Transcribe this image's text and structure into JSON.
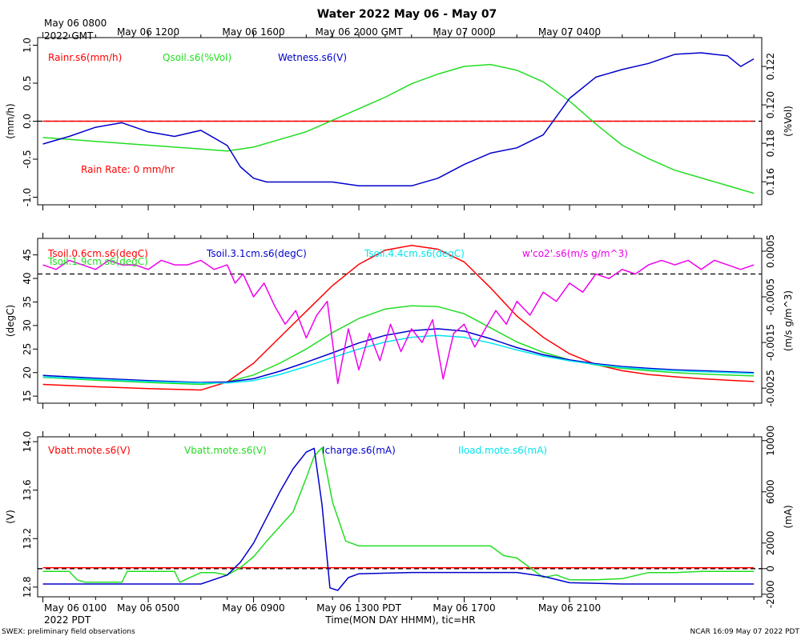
{
  "header": {
    "title": "Water 2022 May 06 - May 07",
    "gmt_start_line1": "May 06 0800",
    "gmt_start_line2": "2022 GMT",
    "gmt_ticks": [
      "May 06 1200",
      "May 06 1600",
      "May 06 2000 GMT",
      "May 07 0000",
      "May 07 0400"
    ]
  },
  "footer": {
    "pdt_start_line1": "May 06 0100",
    "pdt_start_line2": "2022 PDT",
    "pdt_ticks": [
      "May 06 0500",
      "May 06 0900",
      "May 06 1300 PDT",
      "May 06 1700",
      "May 06 2100"
    ],
    "xlabel": "Time(MON DAY HHMM), tic=HR",
    "left_note": "SWEX: preliminary field observations",
    "right_note": "NCAR 16:09 May 07 2022 PDT"
  },
  "colors": {
    "red": "#ff0000",
    "green": "#22dd22",
    "blue": "#0000cc",
    "cyan": "#00e5ee",
    "magenta": "#ee00ee",
    "black": "#000000"
  },
  "chart_data": [
    {
      "type": "line",
      "panel": "water",
      "x_unit": "hours since May 06 0100 PDT",
      "xlim": [
        -0.2,
        27.3
      ],
      "left_axis": {
        "label": "(mm/h)",
        "ylim": [
          -1.1,
          1.1
        ],
        "ticks": [
          "1.0",
          "0.5",
          "0.0",
          "-0.5",
          "-1.0"
        ],
        "tick_values": [
          1.0,
          0.5,
          0.0,
          -0.5,
          -1.0
        ]
      },
      "right_axis": {
        "label": "(%Vol)",
        "ylim": [
          0.1148,
          0.1235
        ],
        "ticks": [
          "0.122",
          "0.120",
          "0.118",
          "0.116"
        ],
        "tick_values": [
          0.122,
          0.12,
          0.118,
          0.116
        ]
      },
      "reference_line": {
        "axis": "left",
        "value": 0.0
      },
      "annotation": "Rain Rate: 0 mm/hr",
      "series": [
        {
          "name": "Rainr.s6(mm/h)",
          "color": "#ff0000",
          "axis": "left",
          "x": [
            0,
            27
          ],
          "y": [
            0.0,
            0.0
          ]
        },
        {
          "name": "Qsoil.s6(%Vol)",
          "color": "#22dd22",
          "axis": "right",
          "x": [
            0,
            1,
            2,
            3,
            4,
            5,
            6,
            7,
            8,
            9,
            10,
            11,
            12,
            13,
            14,
            15,
            16,
            17,
            18,
            19,
            20,
            21,
            22,
            23,
            24,
            25,
            26,
            27
          ],
          "y": [
            0.1183,
            0.1182,
            0.1181,
            0.118,
            0.1179,
            0.1178,
            0.1177,
            0.1176,
            0.1178,
            0.1182,
            0.1186,
            0.1192,
            0.1198,
            0.1204,
            0.1211,
            0.1216,
            0.122,
            0.1221,
            0.1218,
            0.1212,
            0.1202,
            0.119,
            0.1179,
            0.1172,
            0.1166,
            0.1162,
            0.1158,
            0.1154
          ]
        },
        {
          "name": "Wetness.s6(V)",
          "color": "#0000cc",
          "axis": "left",
          "x": [
            0,
            1,
            2,
            3,
            4,
            5,
            6,
            7,
            7.5,
            8,
            8.5,
            9,
            10,
            11,
            12,
            13,
            14,
            15,
            16,
            17,
            18,
            19,
            20,
            21,
            22,
            23,
            24,
            25,
            26,
            26.5,
            27
          ],
          "y": [
            -0.3,
            -0.2,
            -0.08,
            -0.02,
            -0.14,
            -0.2,
            -0.12,
            -0.32,
            -0.6,
            -0.75,
            -0.8,
            -0.8,
            -0.8,
            -0.8,
            -0.85,
            -0.85,
            -0.85,
            -0.75,
            -0.57,
            -0.42,
            -0.35,
            -0.18,
            0.3,
            0.58,
            0.68,
            0.76,
            0.88,
            0.9,
            0.86,
            0.72,
            0.82
          ]
        }
      ]
    },
    {
      "type": "line",
      "panel": "soil",
      "x_unit": "hours since May 06 0100 PDT",
      "xlim": [
        -0.2,
        27.3
      ],
      "left_axis": {
        "label": "(degC)",
        "ylim": [
          13.5,
          48.5
        ],
        "ticks": [
          "45",
          "40",
          "35",
          "30",
          "25",
          "20",
          "15"
        ],
        "tick_values": [
          45,
          40,
          35,
          30,
          25,
          20,
          15
        ]
      },
      "right_axis": {
        "label": "(m/s g/m^3)",
        "ylim": [
          -0.00283,
          0.00078
        ],
        "ticks": [
          "0.0005",
          "-0.0005",
          "-0.0015",
          "-0.0025"
        ],
        "tick_values": [
          0.0005,
          -0.0005,
          -0.0015,
          -0.0025
        ]
      },
      "reference_line": {
        "axis": "right",
        "value": 0.0
      },
      "series": [
        {
          "name": "Tsoil.0.6cm.s6(degC)",
          "color": "#ff0000",
          "axis": "left",
          "x": [
            0,
            2,
            4,
            6,
            7,
            8,
            9,
            10,
            11,
            12,
            13,
            14,
            15,
            16,
            17,
            18,
            19,
            20,
            21,
            22,
            23,
            24,
            25,
            26,
            27
          ],
          "y": [
            17.5,
            17.0,
            16.6,
            16.3,
            18.0,
            22.0,
            27.5,
            33.0,
            38.5,
            43.0,
            46.0,
            47.0,
            46.2,
            43.5,
            38.0,
            32.0,
            27.5,
            24.0,
            21.7,
            20.4,
            19.6,
            19.1,
            18.7,
            18.4,
            18.1
          ]
        },
        {
          "name": "Tsoil.1.9cm.s6(degC)",
          "color": "#22dd22",
          "axis": "left",
          "x": [
            0,
            2,
            4,
            6,
            7,
            8,
            9,
            10,
            11,
            12,
            13,
            14,
            15,
            16,
            17,
            18,
            19,
            20,
            21,
            22,
            23,
            24,
            25,
            26,
            27
          ],
          "y": [
            19.0,
            18.4,
            17.9,
            17.5,
            18.0,
            19.5,
            22.0,
            25.0,
            28.5,
            31.5,
            33.5,
            34.2,
            34.0,
            32.5,
            29.5,
            26.5,
            24.3,
            22.7,
            21.6,
            20.9,
            20.4,
            20.0,
            19.7,
            19.5,
            19.3
          ]
        },
        {
          "name": "Tsoil.3.1cm.s6(degC)",
          "color": "#0000cc",
          "axis": "left",
          "x": [
            0,
            2,
            4,
            6,
            7,
            8,
            9,
            10,
            11,
            12,
            13,
            14,
            15,
            16,
            17,
            18,
            19,
            20,
            21,
            22,
            23,
            24,
            25,
            26,
            27
          ],
          "y": [
            19.4,
            18.8,
            18.3,
            17.9,
            18.0,
            18.7,
            20.3,
            22.2,
            24.2,
            26.3,
            27.9,
            28.9,
            29.3,
            28.8,
            27.2,
            25.3,
            23.8,
            22.7,
            21.9,
            21.3,
            20.9,
            20.6,
            20.4,
            20.2,
            20.0
          ]
        },
        {
          "name": "Tsoil.4.4cm.s6(degC)",
          "color": "#00e5ee",
          "axis": "left",
          "x": [
            0,
            2,
            4,
            6,
            7,
            8,
            9,
            10,
            11,
            12,
            13,
            14,
            15,
            16,
            17,
            18,
            19,
            20,
            21,
            22,
            23,
            24,
            25,
            26,
            27
          ],
          "y": [
            19.1,
            18.6,
            18.1,
            17.8,
            17.8,
            18.3,
            19.6,
            21.3,
            23.2,
            25.0,
            26.5,
            27.5,
            27.9,
            27.5,
            26.3,
            24.8,
            23.5,
            22.5,
            21.7,
            21.1,
            20.7,
            20.4,
            20.2,
            20.0,
            19.8
          ]
        },
        {
          "name": "w'co2'.s6(m/s g/m^3)",
          "color": "#ee00ee",
          "axis": "right",
          "x": [
            0,
            0.5,
            1,
            1.5,
            2,
            2.5,
            3,
            3.5,
            4,
            4.5,
            5,
            5.5,
            6,
            6.5,
            7,
            7.3,
            7.6,
            8,
            8.4,
            8.8,
            9.2,
            9.6,
            10,
            10.4,
            10.8,
            11.2,
            11.6,
            12,
            12.4,
            12.8,
            13.2,
            13.6,
            14,
            14.4,
            14.8,
            15.2,
            15.6,
            16,
            16.4,
            16.8,
            17.2,
            17.6,
            18,
            18.5,
            19,
            19.5,
            20,
            20.5,
            21,
            21.5,
            22,
            22.5,
            23,
            23.5,
            24,
            24.5,
            25,
            25.5,
            26,
            26.5,
            27
          ],
          "y": [
            0.0002,
            0.0001,
            0.0003,
            0.0002,
            0.0001,
            0.0003,
            0.0002,
            0.0002,
            0.0001,
            0.0003,
            0.0002,
            0.0002,
            0.0003,
            0.0001,
            0.0002,
            -0.0002,
            0.0,
            -0.0005,
            -0.0002,
            -0.0007,
            -0.0011,
            -0.0008,
            -0.0014,
            -0.0009,
            -0.0006,
            -0.0024,
            -0.0012,
            -0.0021,
            -0.0013,
            -0.0019,
            -0.0011,
            -0.0017,
            -0.0012,
            -0.0015,
            -0.001,
            -0.0023,
            -0.0013,
            -0.0011,
            -0.0016,
            -0.0012,
            -0.0008,
            -0.0011,
            -0.0006,
            -0.0009,
            -0.0004,
            -0.0006,
            -0.0002,
            -0.0004,
            0.0,
            -0.0001,
            0.0001,
            0.0,
            0.0002,
            0.0003,
            0.0002,
            0.0003,
            0.0001,
            0.0003,
            0.0002,
            0.0001,
            0.0002
          ]
        }
      ]
    },
    {
      "type": "line",
      "panel": "power",
      "x_unit": "hours since May 06 0100 PDT",
      "xlim": [
        -0.2,
        27.3
      ],
      "left_axis": {
        "label": "(V)",
        "ylim": [
          12.72,
          14.04
        ],
        "ticks": [
          "14.0",
          "13.6",
          "13.2",
          "12.8"
        ],
        "tick_values": [
          14.0,
          13.6,
          13.2,
          12.8
        ]
      },
      "right_axis": {
        "label": "(mA)",
        "ylim": [
          -2200,
          10300
        ],
        "ticks": [
          "10000",
          "6000",
          "2000",
          "0",
          "-2000"
        ],
        "tick_values": [
          10000,
          6000,
          2000,
          0,
          -2000
        ]
      },
      "reference_line": {
        "axis": "right",
        "value": 0
      },
      "series": [
        {
          "name": "Vbatt.mote.s6(V)",
          "color": "#ff0000",
          "axis": "left",
          "x": [
            0,
            27
          ],
          "y": [
            12.96,
            12.96
          ]
        },
        {
          "name": "Vbatt.mote.s6(V)",
          "color": "#22dd22",
          "axis": "left",
          "x": [
            0,
            0.5,
            1,
            1.3,
            1.6,
            3,
            3.2,
            5,
            5.2,
            6,
            6.5,
            7,
            7.5,
            8,
            8.5,
            9,
            9.5,
            10,
            10.3,
            10.6,
            11,
            11.5,
            12,
            13,
            14,
            15,
            16,
            17,
            17.5,
            18,
            18.5,
            19,
            19.5,
            20,
            21,
            22,
            23,
            24,
            25,
            26,
            27
          ],
          "y": [
            12.93,
            12.93,
            12.93,
            12.86,
            12.84,
            12.84,
            12.93,
            12.93,
            12.84,
            12.92,
            12.92,
            12.9,
            12.96,
            13.05,
            13.18,
            13.3,
            13.42,
            13.7,
            13.88,
            13.95,
            13.5,
            13.18,
            13.14,
            13.14,
            13.14,
            13.14,
            13.14,
            13.14,
            13.06,
            13.04,
            12.96,
            12.88,
            12.9,
            12.86,
            12.86,
            12.87,
            12.92,
            12.92,
            12.93,
            12.93,
            12.93
          ]
        },
        {
          "name": "Icharge.s6(mA)",
          "color": "#0000cc",
          "axis": "right",
          "x": [
            0,
            2,
            4,
            6,
            7,
            7.5,
            8,
            8.5,
            9,
            9.5,
            10,
            10.3,
            10.6,
            10.9,
            11.2,
            11.6,
            12,
            14,
            16,
            18,
            19,
            20,
            22,
            24,
            26,
            27
          ],
          "y": [
            -1200,
            -1200,
            -1200,
            -1200,
            -500,
            500,
            2000,
            4000,
            6000,
            7800,
            9100,
            9400,
            5000,
            -1500,
            -1700,
            -700,
            -400,
            -300,
            -300,
            -300,
            -600,
            -1100,
            -1200,
            -1200,
            -1200,
            -1200
          ]
        },
        {
          "name": "Iload.mote.s6(mA)",
          "color": "#00e5ee",
          "axis": "right",
          "x": [],
          "y": []
        }
      ]
    }
  ]
}
